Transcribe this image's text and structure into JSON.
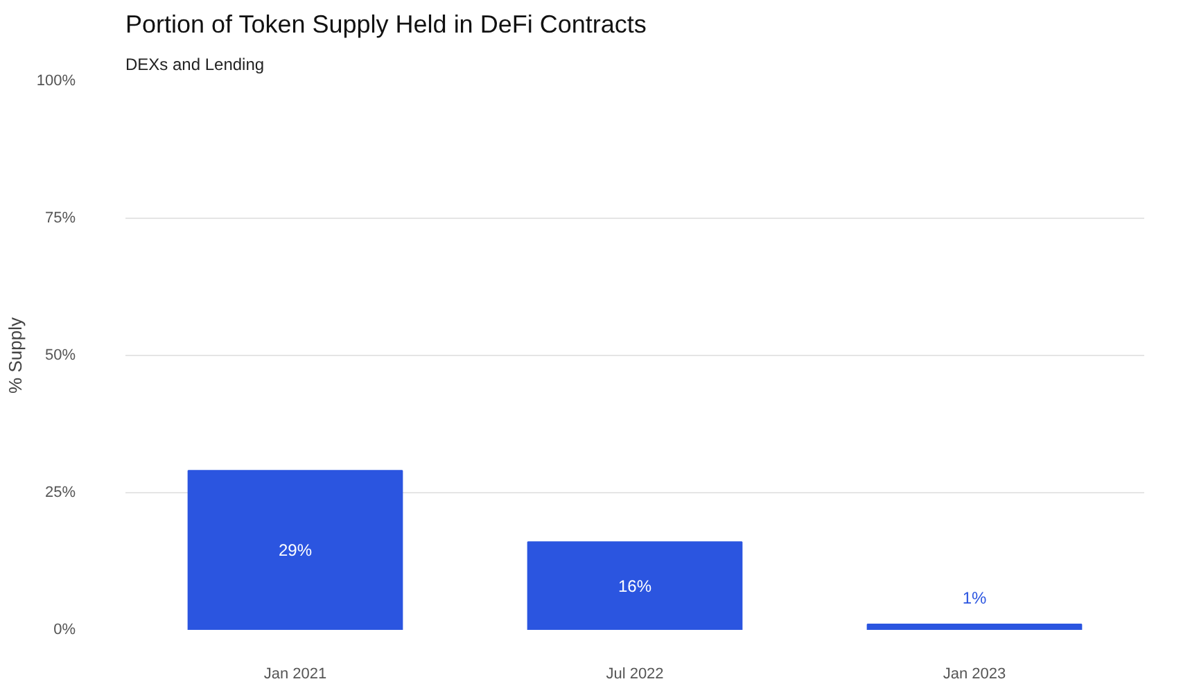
{
  "chart_data": {
    "type": "bar",
    "title": "Portion of Token Supply Held in DeFi Contracts",
    "subtitle": "DEXs and Lending",
    "ylabel": "% Supply",
    "categories": [
      "Jan 2021",
      "Jul 2022",
      "Jan 2023"
    ],
    "values": [
      29,
      16,
      1
    ],
    "color": "#2b55e0",
    "value_labels": [
      "29%",
      "16%",
      "1%"
    ],
    "ylim": [
      0,
      100
    ],
    "yticks": [
      {
        "value": 0,
        "label": "0%"
      },
      {
        "value": 25,
        "label": "25%"
      },
      {
        "value": 50,
        "label": "50%"
      },
      {
        "value": 75,
        "label": "75%"
      },
      {
        "value": 100,
        "label": "100%"
      }
    ],
    "grid": "y"
  }
}
